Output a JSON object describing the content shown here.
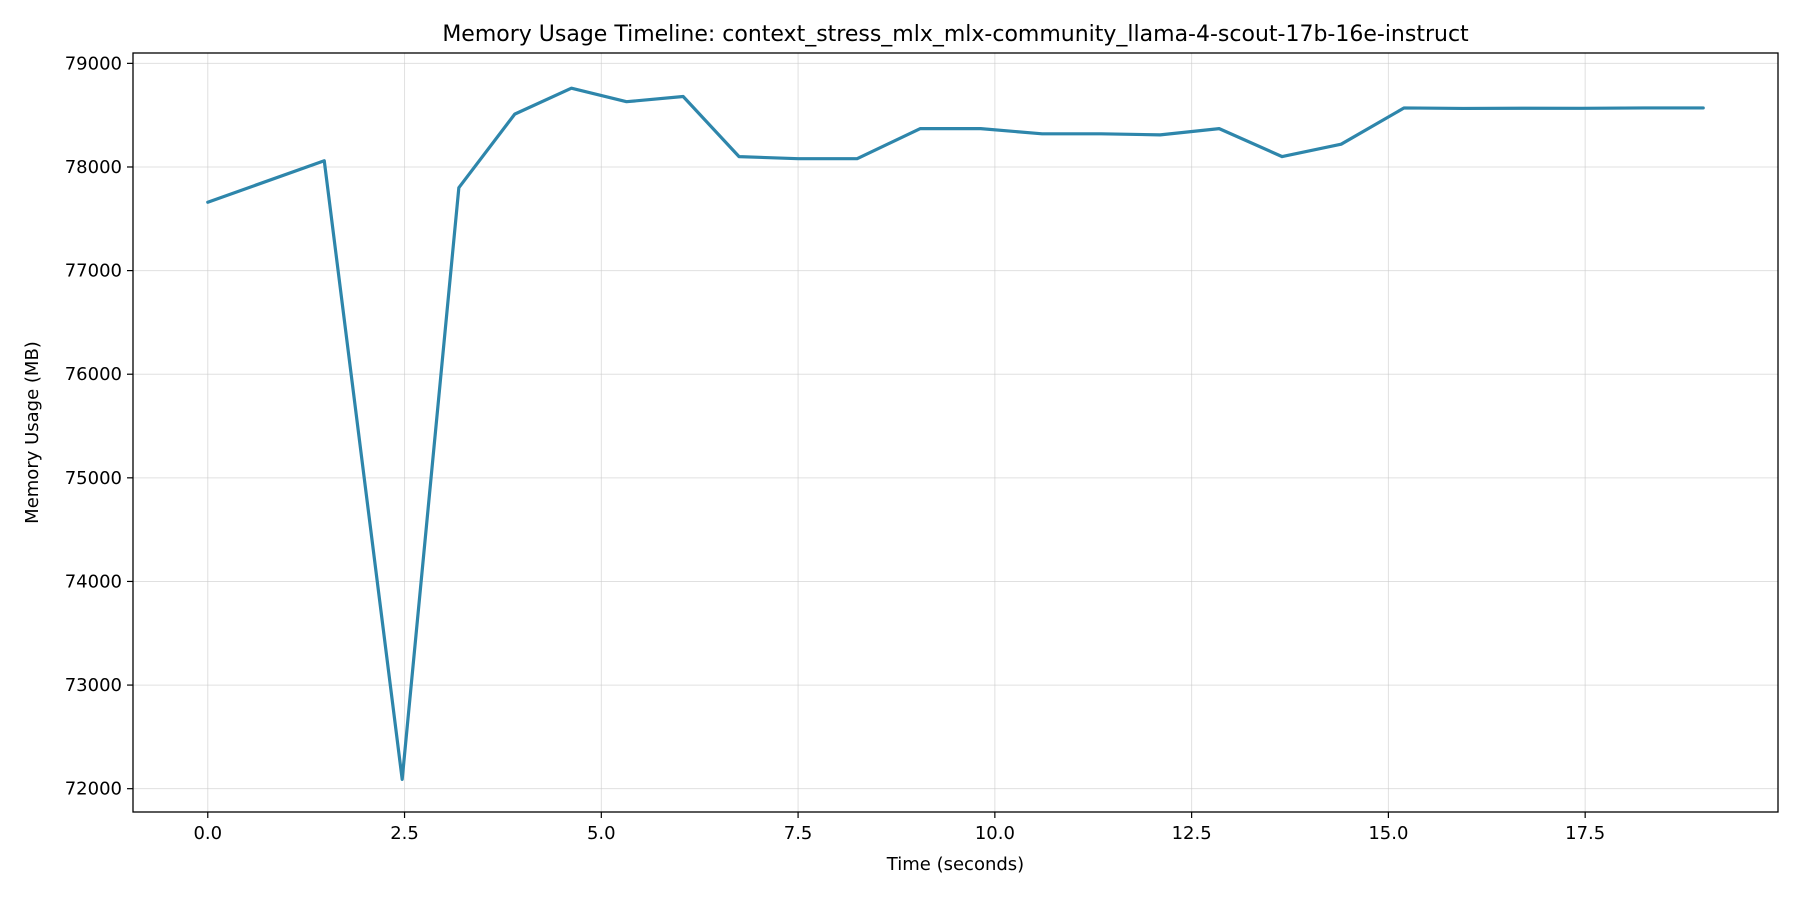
{
  "chart_data": {
    "type": "line",
    "title": "Memory Usage Timeline: context_stress_mlx_mlx-community_llama-4-scout-17b-16e-instruct",
    "xlabel": "Time (seconds)",
    "ylabel": "Memory Usage (MB)",
    "xlim": [
      -0.95,
      19.95
    ],
    "ylim": [
      71775,
      79100
    ],
    "x_ticks": [
      0.0,
      2.5,
      5.0,
      7.5,
      10.0,
      12.5,
      15.0,
      17.5
    ],
    "x_tick_labels": [
      "0.0",
      "2.5",
      "5.0",
      "7.5",
      "10.0",
      "12.5",
      "15.0",
      "17.5"
    ],
    "y_ticks": [
      72000,
      73000,
      74000,
      75000,
      76000,
      77000,
      78000,
      79000
    ],
    "y_tick_labels": [
      "72000",
      "73000",
      "74000",
      "75000",
      "76000",
      "77000",
      "78000",
      "79000"
    ],
    "grid": true,
    "legend": "none",
    "color": "#2e86ab",
    "series": [
      {
        "x": [
          0.0,
          1.48,
          2.47,
          3.19,
          3.9,
          4.62,
          5.32,
          6.04,
          6.75,
          7.5,
          8.25,
          9.05,
          9.82,
          10.6,
          11.35,
          12.1,
          12.85,
          13.65,
          14.4,
          15.2,
          15.95,
          16.7,
          17.45,
          18.25,
          19.0
        ],
        "y": [
          77660,
          78060,
          72090,
          77800,
          78510,
          78760,
          78630,
          78680,
          78100,
          78080,
          78080,
          78370,
          78370,
          78320,
          78320,
          78310,
          78370,
          78100,
          78220,
          78570,
          78565,
          78567,
          78566,
          78570,
          78570
        ]
      }
    ]
  }
}
